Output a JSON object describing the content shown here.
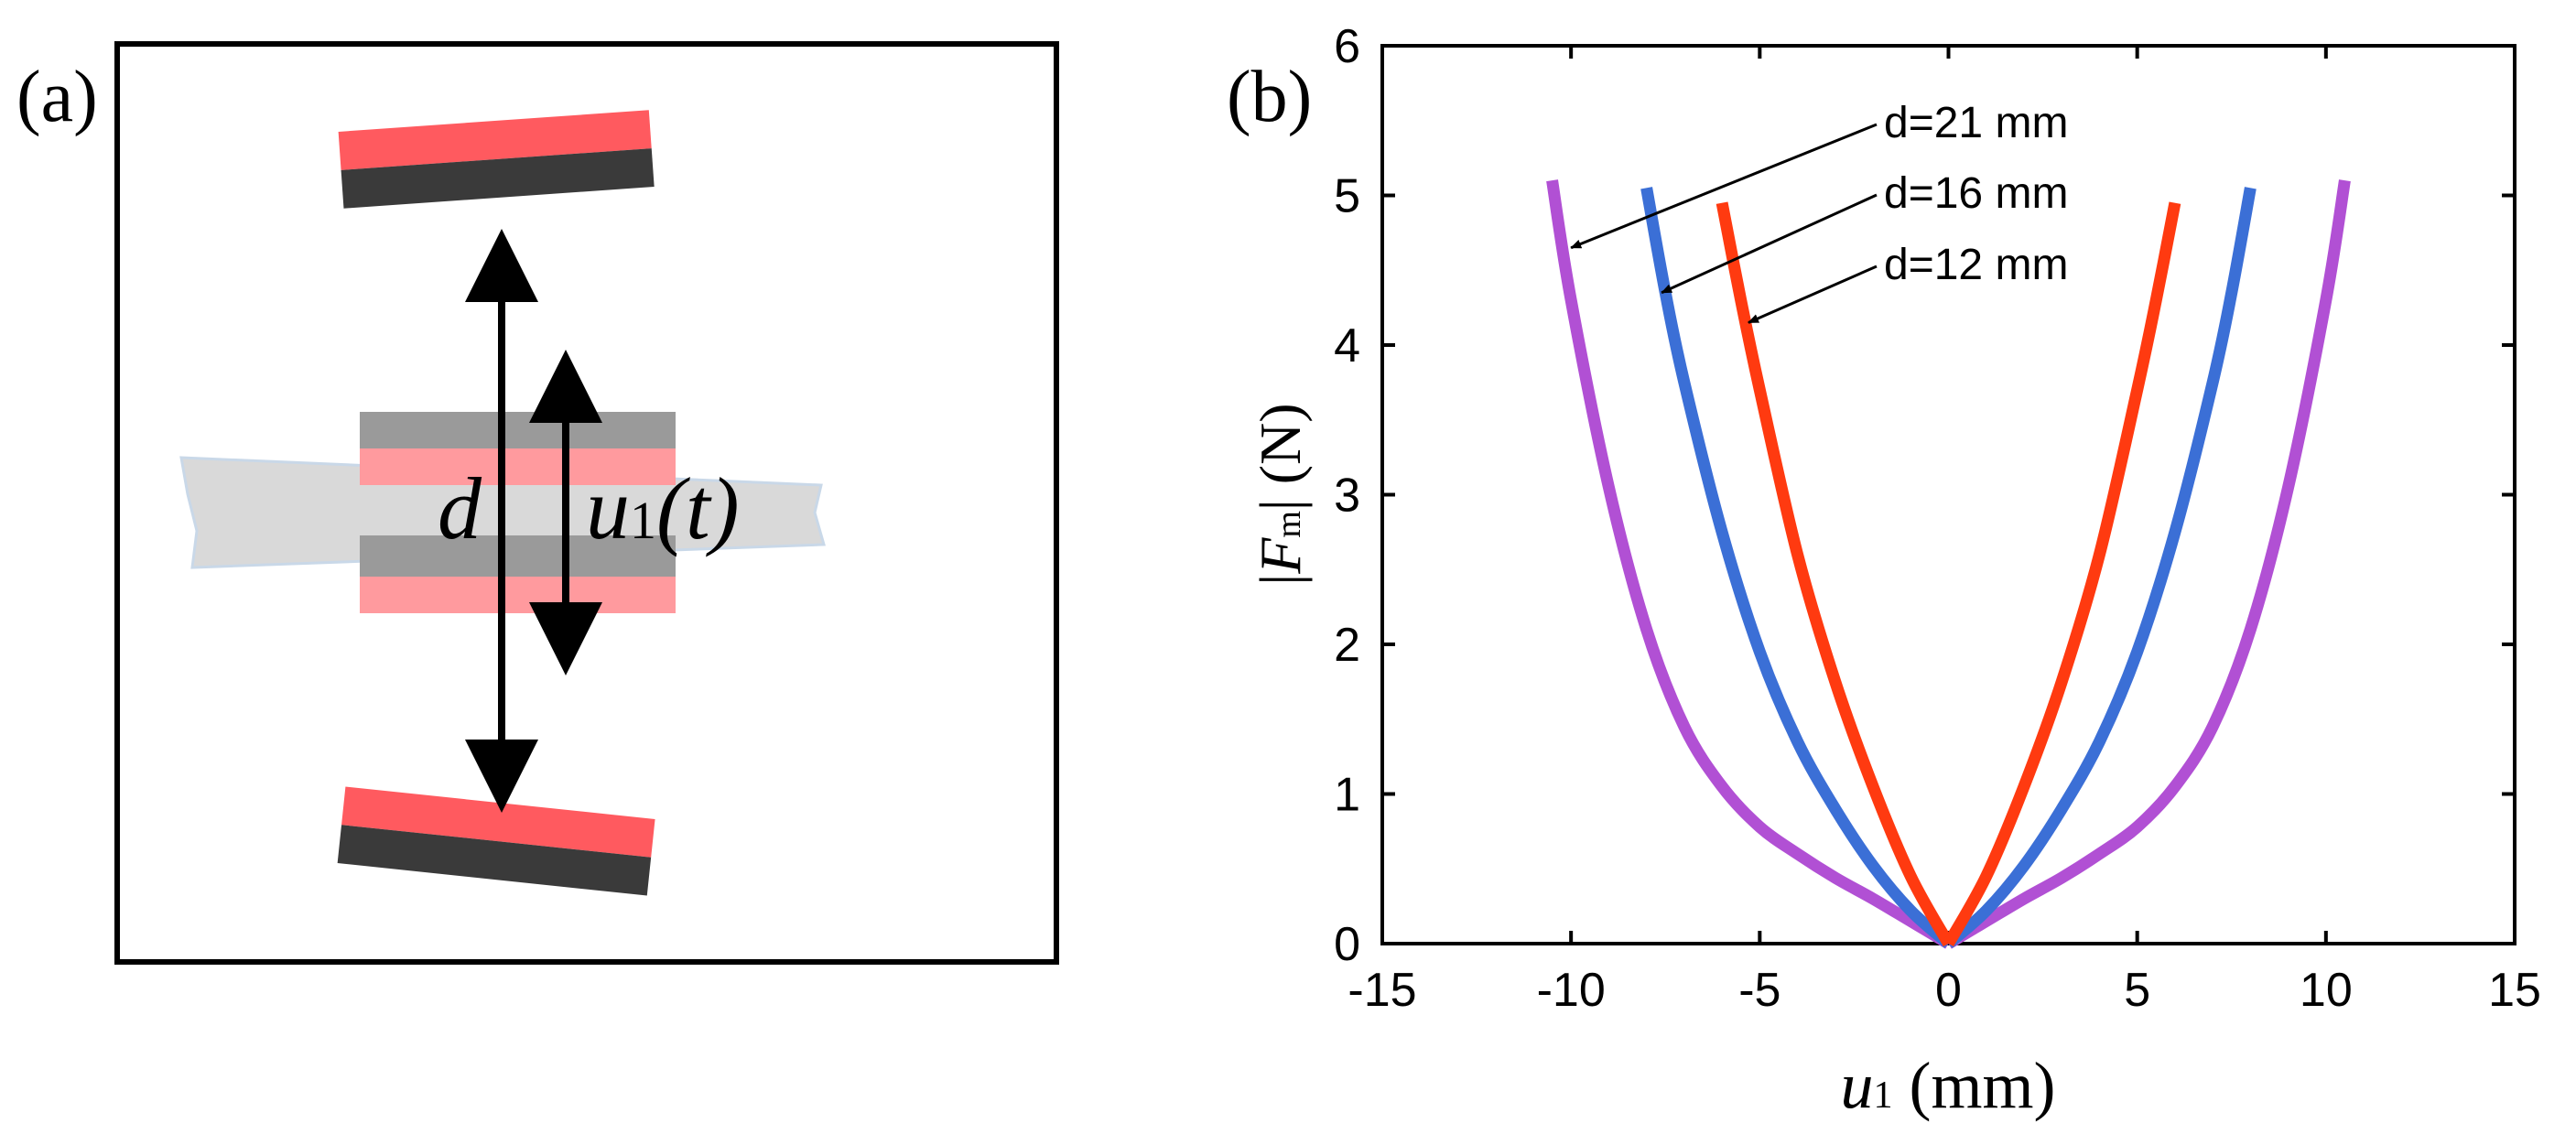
{
  "panel_a": {
    "label": "(a)",
    "d_label": "d",
    "u_symbol": "u",
    "u_subscript": "1",
    "u_arg": "(t)",
    "colors": {
      "magnet_red": "#ff5a5f",
      "magnet_dark": "#3a3a3a",
      "beam": "#d9d9d9",
      "center_gray": "#9a9a9a",
      "center_pink": "#ff9a9e"
    }
  },
  "panel_b": {
    "label": "(b)",
    "ylabel_F": "F",
    "ylabel_sub": "m",
    "ylabel_unit": "(N)",
    "xlabel_u": "u",
    "xlabel_sub": "1",
    "xlabel_unit": "(mm)"
  },
  "chart_data": {
    "type": "line",
    "title": "",
    "xlabel": "u1 (mm)",
    "ylabel": "|Fm| (N)",
    "xlim": [
      -15,
      15
    ],
    "ylim": [
      0,
      6
    ],
    "xticks": [
      -15,
      -10,
      -5,
      0,
      5,
      10,
      15
    ],
    "xtick_labels": [
      "-15",
      "-10",
      "-5",
      "0",
      "5",
      "10",
      "15"
    ],
    "yticks": [
      0,
      1,
      2,
      3,
      4,
      5,
      6
    ],
    "ytick_labels": [
      "0",
      "1",
      "2",
      "3",
      "4",
      "5",
      "6"
    ],
    "grid": false,
    "series": [
      {
        "name": "d=21 mm",
        "color": "#b150d4",
        "x": [
          -10.5,
          -10,
          -9,
          -8,
          -7,
          -6,
          -5,
          -4,
          -3,
          -2,
          -1,
          0,
          1,
          2,
          3,
          4,
          5,
          6,
          7,
          8,
          9,
          10,
          10.5
        ],
        "y": [
          5.1,
          4.3,
          3.05,
          2.1,
          1.45,
          1.05,
          0.78,
          0.6,
          0.44,
          0.3,
          0.15,
          0.0,
          0.15,
          0.3,
          0.44,
          0.6,
          0.78,
          1.05,
          1.45,
          2.1,
          3.05,
          4.3,
          5.1
        ]
      },
      {
        "name": "d=16 mm",
        "color": "#3b6fd6",
        "x": [
          -8,
          -7.5,
          -7,
          -6,
          -5,
          -4,
          -3,
          -2,
          -1,
          0,
          1,
          2,
          3,
          4,
          5,
          6,
          7,
          7.5,
          8
        ],
        "y": [
          5.05,
          4.35,
          3.75,
          2.75,
          1.95,
          1.35,
          0.9,
          0.52,
          0.22,
          0.0,
          0.22,
          0.52,
          0.9,
          1.35,
          1.95,
          2.75,
          3.75,
          4.35,
          5.05
        ]
      },
      {
        "name": "d=12 mm",
        "color": "#ff3a10",
        "x": [
          -6,
          -5.5,
          -5,
          -4,
          -3,
          -2,
          -1,
          0,
          1,
          2,
          3,
          4,
          5,
          5.5,
          6
        ],
        "y": [
          4.95,
          4.3,
          3.7,
          2.6,
          1.75,
          1.05,
          0.45,
          0.0,
          0.45,
          1.05,
          1.75,
          2.6,
          3.7,
          4.3,
          4.95
        ]
      }
    ],
    "annotations": [
      {
        "text": "d=21 mm",
        "points_to": [
          -10,
          4.65
        ]
      },
      {
        "text": "d=16 mm",
        "points_to": [
          -7.6,
          4.35
        ]
      },
      {
        "text": "d=12 mm",
        "points_to": [
          -5.3,
          4.15
        ]
      }
    ]
  }
}
